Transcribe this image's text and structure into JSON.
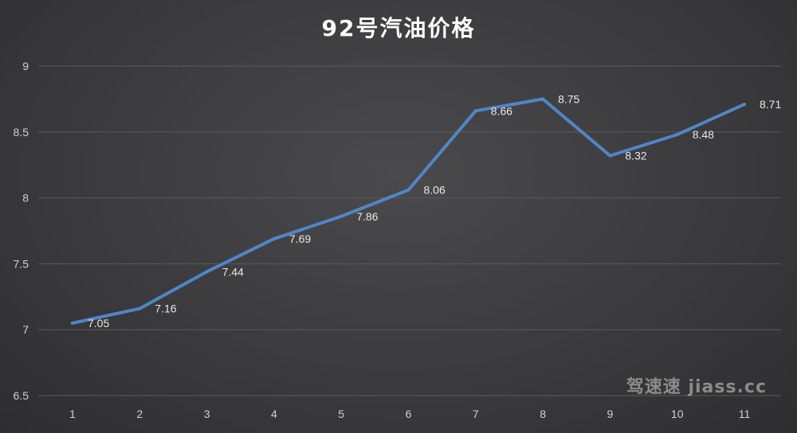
{
  "chart_data": {
    "type": "line",
    "title": "92号汽油价格",
    "xlabel": "",
    "ylabel": "",
    "categories": [
      "1",
      "2",
      "3",
      "4",
      "5",
      "6",
      "7",
      "8",
      "9",
      "10",
      "11"
    ],
    "values": [
      7.05,
      7.16,
      7.44,
      7.69,
      7.86,
      8.06,
      8.66,
      8.75,
      8.32,
      8.48,
      8.71
    ],
    "data_labels": [
      "7.05",
      "7.16",
      "7.44",
      "7.69",
      "7.86",
      "8.06",
      "8.66",
      "8.75",
      "8.32",
      "8.48",
      "8.71"
    ],
    "y_ticks": [
      "6.5",
      "7",
      "7.5",
      "8",
      "8.5",
      "9"
    ],
    "ylim": [
      6.5,
      9
    ],
    "grid": true,
    "legend": "none",
    "colors": {
      "line": "#4f86c6",
      "grid": "#5a5a5c",
      "background": "#3c3c3e"
    }
  },
  "watermark": "驾速速 jiass.cc"
}
